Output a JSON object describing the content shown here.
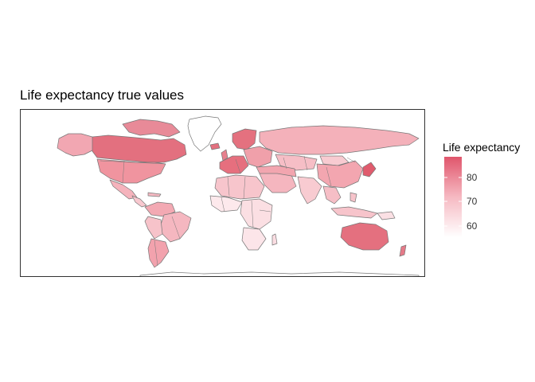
{
  "title": "Life expectancy true values",
  "legend": {
    "title": "Life expectancy",
    "ticks": [
      "80",
      "70",
      "60"
    ],
    "color_low": "#ffffff",
    "color_high": "#e0566c"
  },
  "colors": {
    "border": "#777777",
    "panel_border": "#333333"
  }
}
